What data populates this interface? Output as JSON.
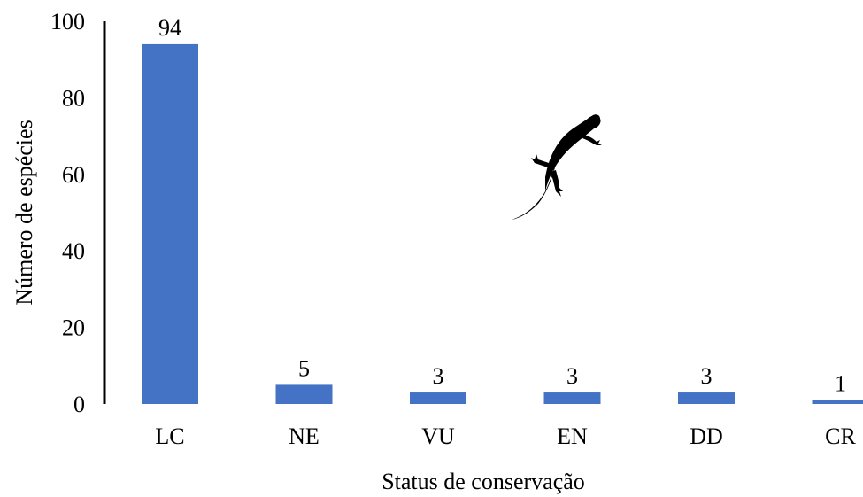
{
  "chart_data": {
    "type": "bar",
    "categories": [
      "LC",
      "NE",
      "VU",
      "EN",
      "DD",
      "CR"
    ],
    "values": [
      94,
      5,
      3,
      3,
      3,
      1
    ],
    "data_labels": [
      "94",
      "5",
      "3",
      "3",
      "3",
      "1"
    ],
    "title": "",
    "xlabel": "Status de conservação",
    "ylabel": "Número de espécies",
    "ylim": [
      0,
      100
    ],
    "yticks": [
      0,
      20,
      40,
      60,
      80,
      100
    ],
    "grid": false,
    "legend": "none",
    "bar_color": "#4472c4",
    "axis_color": "#000000",
    "decoration_icon": "lizard-silhouette-icon"
  }
}
